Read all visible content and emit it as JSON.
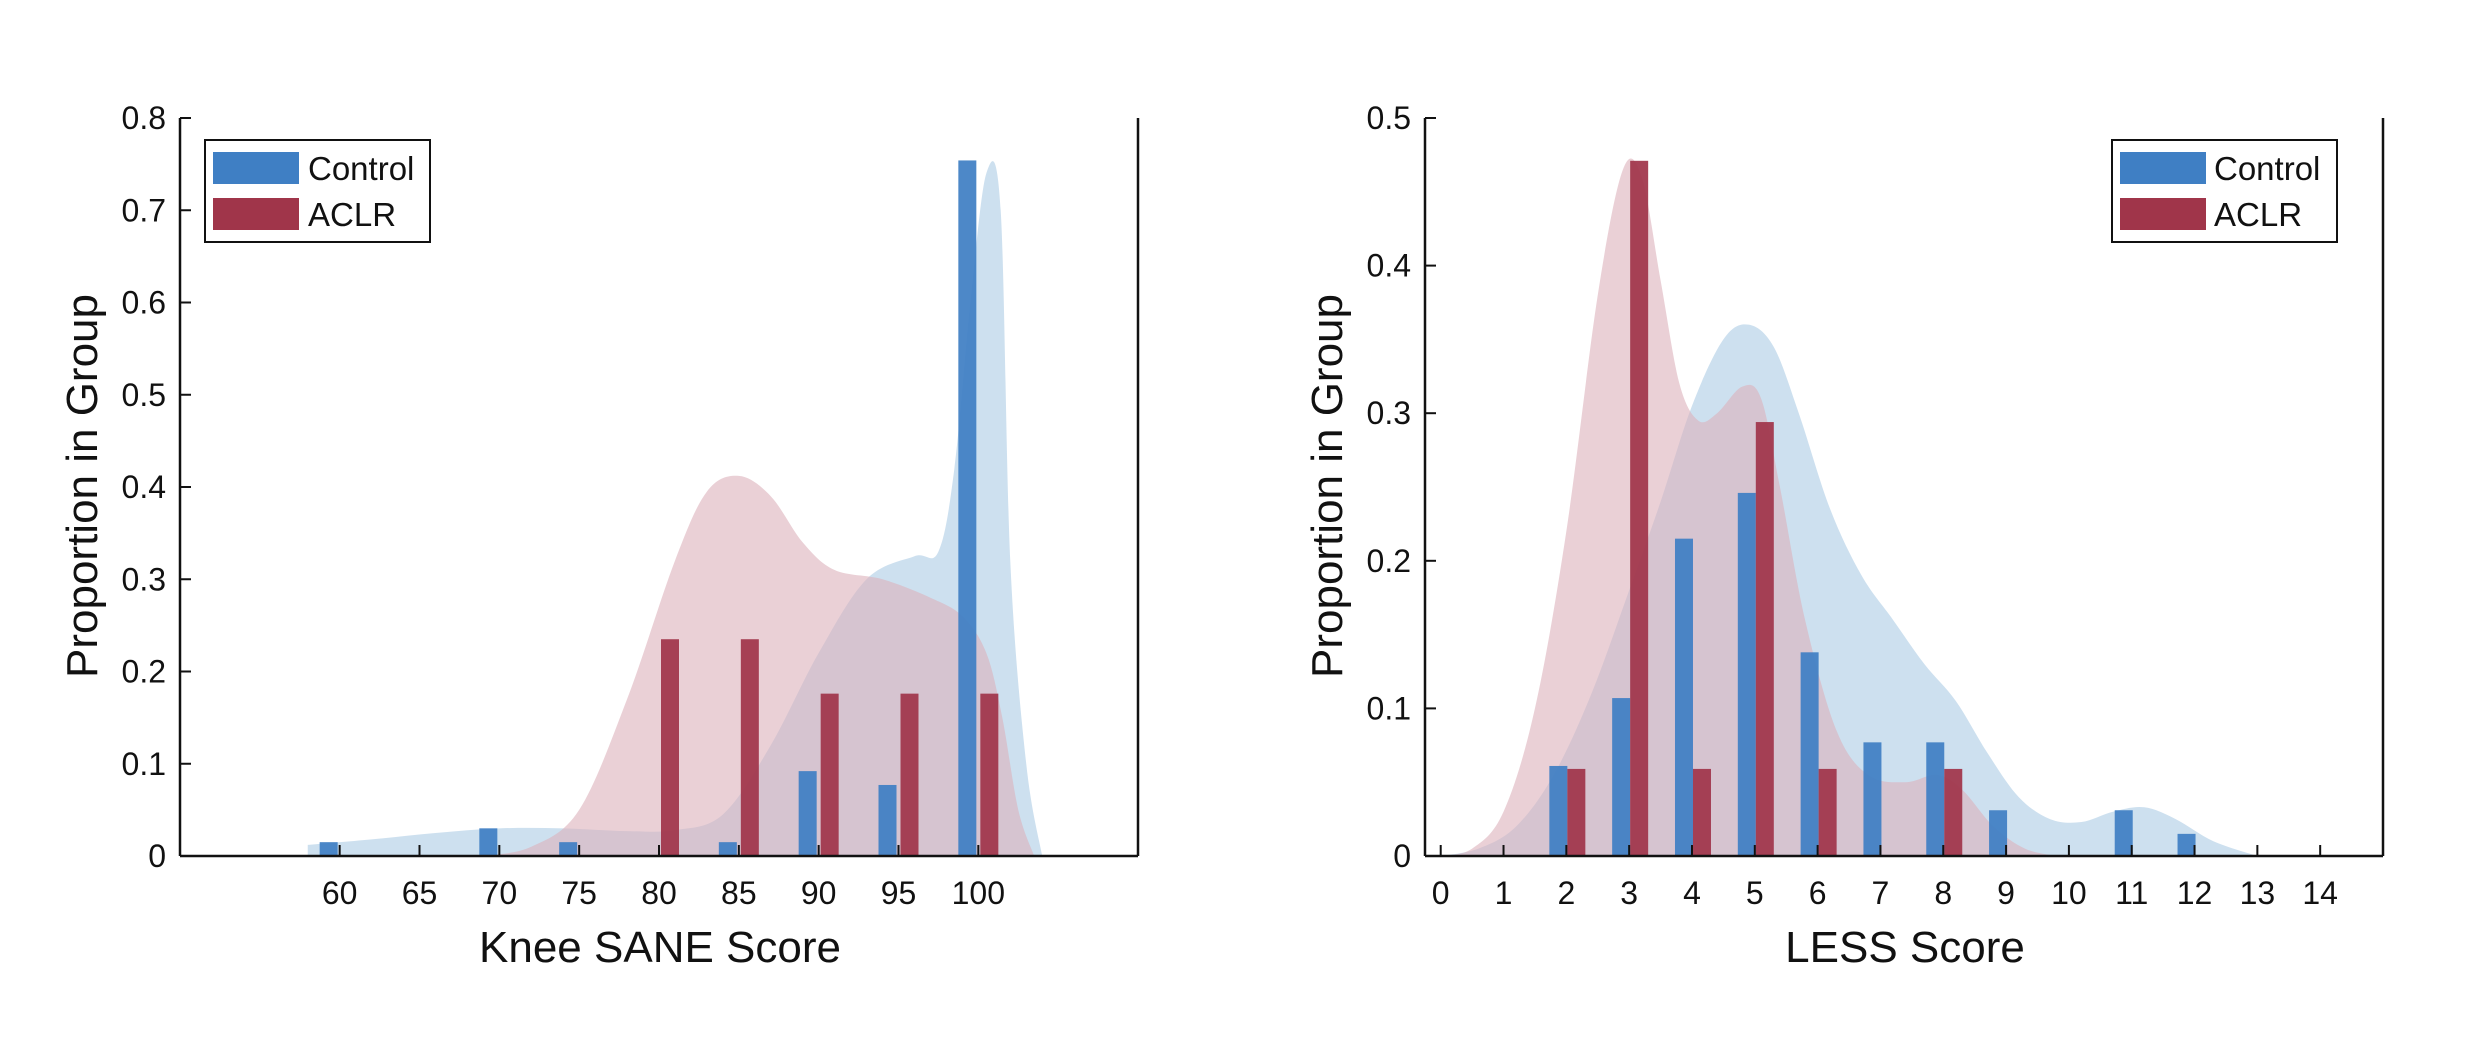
{
  "colors": {
    "control": "#3f7fc4",
    "aclr": "#a0354a",
    "control_fill": "#bcd5ea",
    "aclr_fill": "#dcb0bb",
    "axis": "#111111"
  },
  "chart_data": [
    {
      "type": "bar",
      "xlabel": "Knee SANE Score",
      "ylabel": "Proportion in Group",
      "xlim": [
        50,
        110
      ],
      "ylim": [
        0,
        0.8
      ],
      "xticks": [
        "60",
        "65",
        "70",
        "75",
        "80",
        "85",
        "90",
        "95",
        "100"
      ],
      "yticks": [
        "0",
        "0.1",
        "0.2",
        "0.3",
        "0.4",
        "0.5",
        "0.6",
        "0.7",
        "0.8"
      ],
      "legend": {
        "placement": "top-left",
        "entries": [
          "Control",
          "ACLR"
        ]
      },
      "series": [
        {
          "name": "Control",
          "x": [
            60,
            70,
            75,
            85,
            90,
            95,
            100
          ],
          "values": [
            0.015,
            0.03,
            0.015,
            0.015,
            0.092,
            0.077,
            0.754
          ]
        },
        {
          "name": "ACLR",
          "x": [
            80,
            85,
            90,
            95,
            100
          ],
          "values": [
            0.235,
            0.235,
            0.176,
            0.176,
            0.176
          ]
        }
      ],
      "density": [
        {
          "name": "Control",
          "points": [
            [
              58,
              0.012
            ],
            [
              62,
              0.018
            ],
            [
              66,
              0.025
            ],
            [
              70,
              0.03
            ],
            [
              74,
              0.03
            ],
            [
              78,
              0.027
            ],
            [
              81,
              0.028
            ],
            [
              84,
              0.045
            ],
            [
              87,
              0.12
            ],
            [
              90,
              0.22
            ],
            [
              93,
              0.3
            ],
            [
              96,
              0.325
            ],
            [
              97.5,
              0.33
            ],
            [
              98.5,
              0.42
            ],
            [
              99.5,
              0.6
            ],
            [
              100.5,
              0.74
            ],
            [
              101.4,
              0.7
            ],
            [
              102,
              0.32
            ],
            [
              103,
              0.1
            ],
            [
              104,
              0.0
            ]
          ]
        },
        {
          "name": "ACLR",
          "points": [
            [
              69,
              0.0
            ],
            [
              72,
              0.01
            ],
            [
              75,
              0.05
            ],
            [
              78,
              0.17
            ],
            [
              81,
              0.32
            ],
            [
              83,
              0.395
            ],
            [
              85,
              0.412
            ],
            [
              87,
              0.39
            ],
            [
              89,
              0.34
            ],
            [
              91,
              0.31
            ],
            [
              94,
              0.3
            ],
            [
              97,
              0.28
            ],
            [
              99,
              0.26
            ],
            [
              100.5,
              0.22
            ],
            [
              101.5,
              0.15
            ],
            [
              102.5,
              0.05
            ],
            [
              103.5,
              0.0
            ]
          ]
        }
      ]
    },
    {
      "type": "bar",
      "xlabel": "LESS Score",
      "ylabel": "Proportion in Group",
      "xlim": [
        -0.25,
        15
      ],
      "ylim": [
        0,
        0.5
      ],
      "xticks": [
        "0",
        "1",
        "2",
        "3",
        "4",
        "5",
        "6",
        "7",
        "8",
        "9",
        "10",
        "11",
        "12",
        "13",
        "14"
      ],
      "yticks": [
        "0",
        "0.1",
        "0.2",
        "0.3",
        "0.4",
        "0.5"
      ],
      "legend": {
        "placement": "top-right",
        "entries": [
          "Control",
          "ACLR"
        ]
      },
      "series": [
        {
          "name": "Control",
          "x": [
            2,
            3,
            4,
            5,
            6,
            7,
            8,
            9,
            11,
            12
          ],
          "values": [
            0.061,
            0.107,
            0.215,
            0.246,
            0.138,
            0.077,
            0.077,
            0.031,
            0.031,
            0.015
          ]
        },
        {
          "name": "ACLR",
          "x": [
            2,
            3,
            4,
            5,
            6,
            8
          ],
          "values": [
            0.059,
            0.471,
            0.059,
            0.294,
            0.059,
            0.059
          ]
        }
      ],
      "density": [
        {
          "name": "Control",
          "points": [
            [
              0,
              0.0
            ],
            [
              0.6,
              0.005
            ],
            [
              1.2,
              0.02
            ],
            [
              1.8,
              0.055
            ],
            [
              2.4,
              0.11
            ],
            [
              3.0,
              0.18
            ],
            [
              3.5,
              0.24
            ],
            [
              4.0,
              0.305
            ],
            [
              4.5,
              0.35
            ],
            [
              4.9,
              0.36
            ],
            [
              5.3,
              0.345
            ],
            [
              5.7,
              0.3
            ],
            [
              6.2,
              0.235
            ],
            [
              6.7,
              0.19
            ],
            [
              7.2,
              0.16
            ],
            [
              7.7,
              0.13
            ],
            [
              8.2,
              0.105
            ],
            [
              8.7,
              0.07
            ],
            [
              9.2,
              0.04
            ],
            [
              9.7,
              0.025
            ],
            [
              10.2,
              0.023
            ],
            [
              10.7,
              0.03
            ],
            [
              11.2,
              0.033
            ],
            [
              11.7,
              0.025
            ],
            [
              12.3,
              0.01
            ],
            [
              13.0,
              0.0
            ]
          ]
        },
        {
          "name": "ACLR",
          "points": [
            [
              0,
              0.0
            ],
            [
              0.5,
              0.005
            ],
            [
              1.0,
              0.03
            ],
            [
              1.5,
              0.1
            ],
            [
              2.0,
              0.22
            ],
            [
              2.5,
              0.38
            ],
            [
              2.9,
              0.465
            ],
            [
              3.2,
              0.46
            ],
            [
              3.5,
              0.39
            ],
            [
              3.8,
              0.32
            ],
            [
              4.1,
              0.295
            ],
            [
              4.4,
              0.3
            ],
            [
              4.8,
              0.318
            ],
            [
              5.1,
              0.31
            ],
            [
              5.4,
              0.25
            ],
            [
              5.8,
              0.16
            ],
            [
              6.3,
              0.085
            ],
            [
              6.8,
              0.055
            ],
            [
              7.4,
              0.05
            ],
            [
              7.9,
              0.055
            ],
            [
              8.3,
              0.045
            ],
            [
              8.8,
              0.02
            ],
            [
              9.3,
              0.005
            ],
            [
              9.8,
              0.0
            ]
          ]
        }
      ]
    }
  ]
}
